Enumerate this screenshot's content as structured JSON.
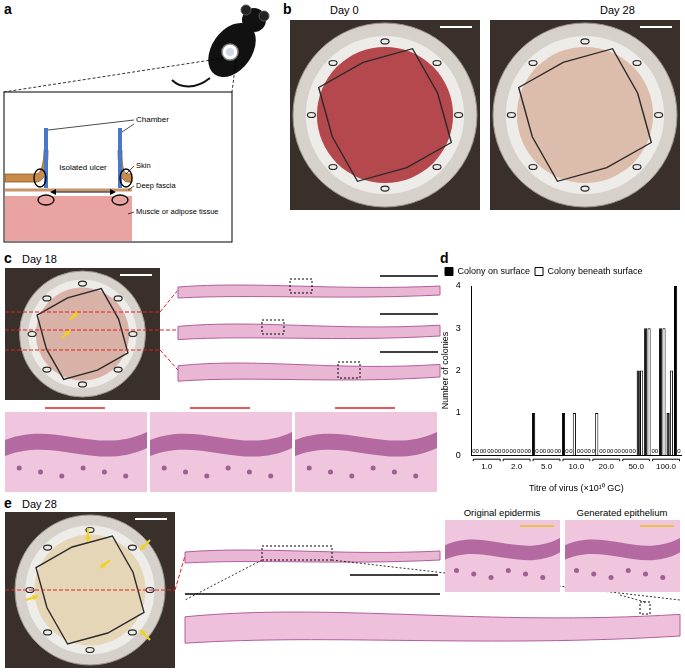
{
  "figure": {
    "panel_labels": [
      "a",
      "b",
      "c",
      "d",
      "e"
    ],
    "a": {
      "chamber": "Chamber",
      "ulcer": "Isolated ulcer",
      "layers": [
        "Skin",
        "Deep fascia",
        "Muscle or adipose tissue"
      ]
    },
    "b": {
      "photos": [
        "Day 0",
        "Day 28"
      ]
    },
    "c": {
      "photo": "Day 18"
    },
    "e": {
      "photo": "Day 28",
      "zooms": [
        "Original epidermis",
        "Generated epithelium"
      ]
    }
  },
  "chart_data": {
    "type": "bar",
    "legend": "top-left",
    "grid": false,
    "data_labels": true,
    "x_label": "Titre of virus (×10¹⁰ GC)",
    "y_label": "Number of colonies",
    "categories": [
      "1.0",
      null,
      null,
      null,
      "2.0",
      null,
      null,
      null,
      "5.0",
      null,
      null,
      null,
      "10.0",
      null,
      null,
      null,
      "20.0",
      null,
      null,
      null,
      "50.0",
      null,
      null,
      null,
      "100.0",
      null,
      null,
      null
    ],
    "ylim": [
      0,
      4
    ],
    "yticks": [
      0,
      1,
      2,
      3,
      4
    ],
    "series": [
      {
        "name": "Colony on surface",
        "color": "#000000",
        "values": [
          0,
          0,
          0,
          0,
          0,
          0,
          0,
          0,
          1,
          0,
          0,
          0,
          1,
          0,
          0,
          0,
          0,
          0,
          0,
          0,
          0,
          0,
          2,
          3,
          0,
          3,
          1,
          4
        ],
        "value_labels": [
          "0",
          "0",
          "0",
          "0",
          "0",
          "0",
          "0",
          "0",
          null,
          "0",
          "0",
          "0",
          null,
          "0",
          "0",
          "0",
          "0",
          "0",
          "0",
          "0",
          "0",
          "0",
          null,
          null,
          "0",
          null,
          null,
          null
        ]
      },
      {
        "name": "Colony beneath surface",
        "color": "#ffffff",
        "values": [
          0,
          0,
          0,
          0,
          0,
          0,
          0,
          0,
          0,
          0,
          0,
          0,
          0,
          1,
          0,
          0,
          1,
          0,
          0,
          0,
          0,
          0,
          2,
          3,
          0,
          3,
          2,
          0
        ],
        "value_labels": [
          "0",
          "0",
          "0",
          "0",
          "0",
          "0",
          "0",
          "0",
          "0",
          "0",
          "0",
          "0",
          "0",
          null,
          "0",
          "0",
          null,
          "0",
          "0",
          "0",
          "0",
          "0",
          null,
          null,
          "0",
          null,
          null,
          "0"
        ]
      }
    ]
  }
}
